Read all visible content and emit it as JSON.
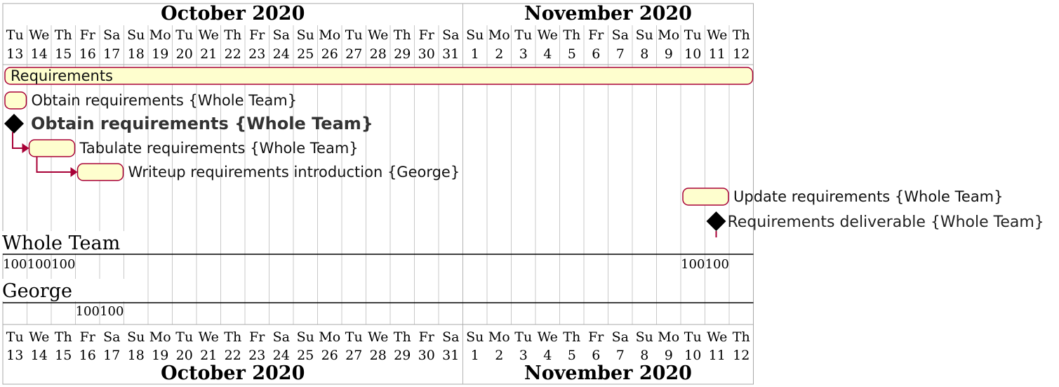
{
  "months": [
    {
      "label": "October 2020"
    },
    {
      "label": "November 2020"
    }
  ],
  "days": [
    {
      "dow": "Tu",
      "num": "13"
    },
    {
      "dow": "We",
      "num": "14"
    },
    {
      "dow": "Th",
      "num": "15"
    },
    {
      "dow": "Fr",
      "num": "16"
    },
    {
      "dow": "Sa",
      "num": "17"
    },
    {
      "dow": "Su",
      "num": "18"
    },
    {
      "dow": "Mo",
      "num": "19"
    },
    {
      "dow": "Tu",
      "num": "20"
    },
    {
      "dow": "We",
      "num": "21"
    },
    {
      "dow": "Th",
      "num": "22"
    },
    {
      "dow": "Fr",
      "num": "23"
    },
    {
      "dow": "Sa",
      "num": "24"
    },
    {
      "dow": "Su",
      "num": "25"
    },
    {
      "dow": "Mo",
      "num": "26"
    },
    {
      "dow": "Tu",
      "num": "27"
    },
    {
      "dow": "We",
      "num": "28"
    },
    {
      "dow": "Th",
      "num": "29"
    },
    {
      "dow": "Fr",
      "num": "30"
    },
    {
      "dow": "Sa",
      "num": "31"
    },
    {
      "dow": "Su",
      "num": "1"
    },
    {
      "dow": "Mo",
      "num": "2"
    },
    {
      "dow": "Tu",
      "num": "3"
    },
    {
      "dow": "We",
      "num": "4"
    },
    {
      "dow": "Th",
      "num": "5"
    },
    {
      "dow": "Fr",
      "num": "6"
    },
    {
      "dow": "Sa",
      "num": "7"
    },
    {
      "dow": "Su",
      "num": "8"
    },
    {
      "dow": "Mo",
      "num": "9"
    },
    {
      "dow": "Tu",
      "num": "10"
    },
    {
      "dow": "We",
      "num": "11"
    },
    {
      "dow": "Th",
      "num": "12"
    }
  ],
  "tasks": [
    {
      "kind": "bar",
      "label": "Requirements",
      "start": 0,
      "end": 31,
      "label_inside": true
    },
    {
      "kind": "bar",
      "label": "Obtain requirements {Whole Team}",
      "start": 0,
      "end": 1
    },
    {
      "kind": "milestone",
      "label": "Obtain requirements {Whole Team}",
      "at": 0,
      "style": "bold"
    },
    {
      "kind": "bar",
      "label": "Tabulate requirements {Whole Team}",
      "start": 1,
      "end": 3,
      "arrow_from": 0
    },
    {
      "kind": "bar",
      "label": "Writeup requirements introduction {George}",
      "start": 3,
      "end": 5,
      "arrow_from": 1
    },
    {
      "kind": "bar",
      "label": "Update requirements {Whole Team}",
      "start": 28,
      "end": 30
    },
    {
      "kind": "milestone",
      "label": "Requirements deliverable {Whole Team}",
      "at": 29,
      "style": "plain"
    }
  ],
  "resources": [
    {
      "name": "Whole Team",
      "loads": [
        {
          "day": 0,
          "value": "100"
        },
        {
          "day": 1,
          "value": "100"
        },
        {
          "day": 2,
          "value": "100"
        },
        {
          "day": 28,
          "value": "100"
        },
        {
          "day": 29,
          "value": "100"
        }
      ]
    },
    {
      "name": "George",
      "loads": [
        {
          "day": 3,
          "value": "100"
        },
        {
          "day": 4,
          "value": "100"
        }
      ]
    }
  ],
  "colors": {
    "bar_fill": "#FEFECE",
    "bar_stroke": "#A80036",
    "arrow": "#A80036",
    "milestone": "#000000",
    "grid": "#c8c8c8",
    "frame": "#a8a8a8"
  }
}
